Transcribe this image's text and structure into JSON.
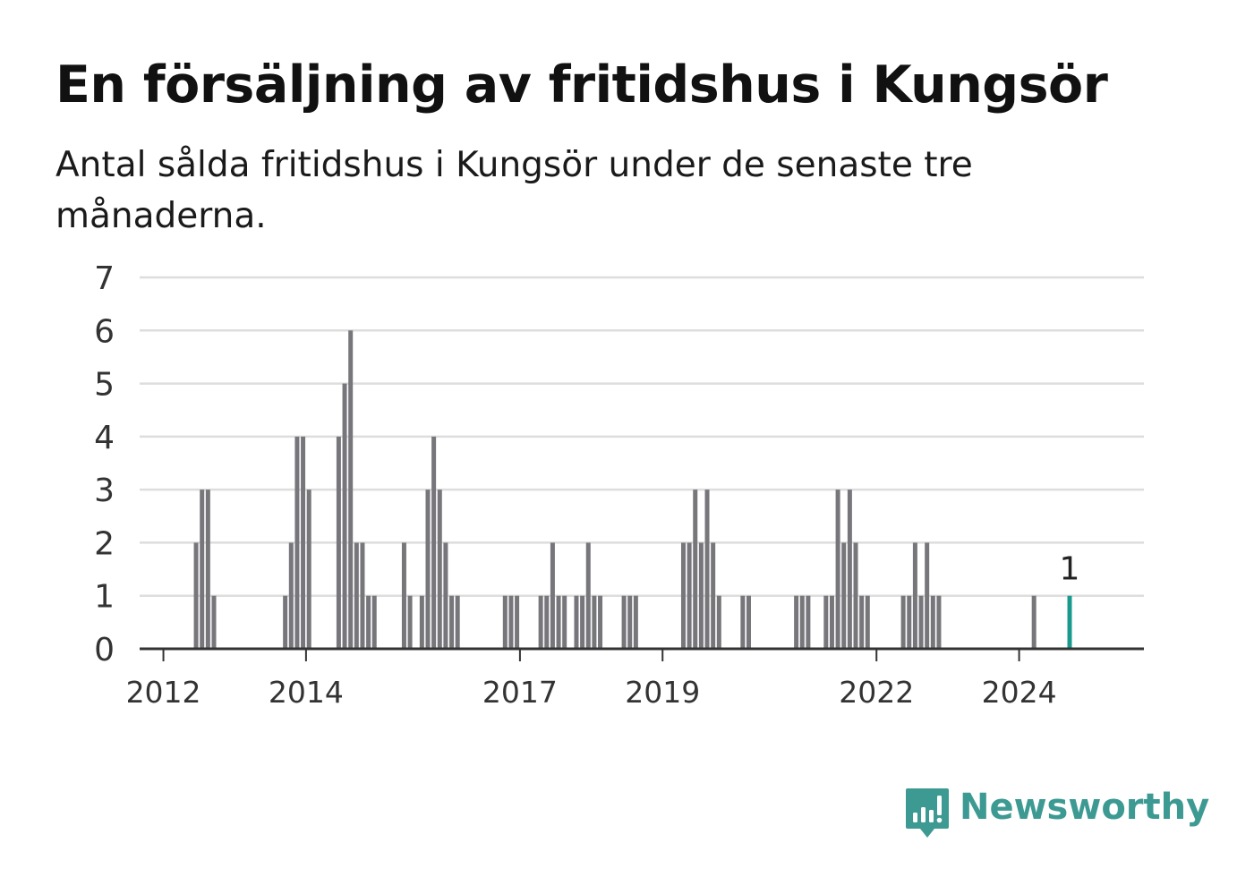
{
  "header": {
    "title": "En försäljning av fritidshus i Kungsör",
    "subtitle": "Antal sålda fritidshus i Kungsör under de senaste tre månaderna."
  },
  "brand": {
    "name": "Newsworthy",
    "color": "#3d9a93",
    "icon": "newsworthy-logo-icon"
  },
  "colors": {
    "bar": "#77767b",
    "highlight": "#1a9a8c",
    "grid": "#dddddd",
    "axis": "#333333",
    "text": "#333333"
  },
  "chart_data": {
    "type": "bar",
    "title": "En försäljning av fritidshus i Kungsör",
    "subtitle": "Antal sålda fritidshus i Kungsör under de senaste tre månaderna.",
    "xlabel": "",
    "ylabel": "",
    "ylim": [
      0,
      7
    ],
    "yticks": [
      0,
      1,
      2,
      3,
      4,
      5,
      6,
      7
    ],
    "xticks": [
      "2012",
      "2014",
      "2017",
      "2019",
      "2022",
      "2024"
    ],
    "xlim": [
      "2011-09",
      "2025-10"
    ],
    "grid": true,
    "legend": "none",
    "series": [
      {
        "x": [
          "2012-06",
          "2012-07",
          "2012-08",
          "2012-09",
          "2013-09",
          "2013-10",
          "2013-11",
          "2013-12",
          "2014-01",
          "2014-06",
          "2014-07",
          "2014-08",
          "2014-09",
          "2014-10",
          "2014-11",
          "2014-12",
          "2015-05",
          "2015-06",
          "2015-08",
          "2015-09",
          "2015-10",
          "2015-11",
          "2015-12",
          "2016-01",
          "2016-02",
          "2016-10",
          "2016-11",
          "2016-12",
          "2017-04",
          "2017-05",
          "2017-06",
          "2017-07",
          "2017-08",
          "2017-10",
          "2017-11",
          "2017-12",
          "2018-01",
          "2018-02",
          "2018-06",
          "2018-07",
          "2018-08",
          "2019-04",
          "2019-05",
          "2019-06",
          "2019-07",
          "2019-08",
          "2019-09",
          "2019-10",
          "2020-02",
          "2020-03",
          "2020-11",
          "2020-12",
          "2021-01",
          "2021-04",
          "2021-05",
          "2021-06",
          "2021-07",
          "2021-08",
          "2021-09",
          "2021-10",
          "2021-11",
          "2022-05",
          "2022-06",
          "2022-07",
          "2022-08",
          "2022-09",
          "2022-10",
          "2022-11",
          "2024-03",
          "2024-09"
        ],
        "values": [
          2,
          3,
          3,
          1,
          1,
          2,
          4,
          4,
          3,
          4,
          5,
          6,
          2,
          2,
          1,
          1,
          2,
          1,
          1,
          3,
          4,
          3,
          2,
          1,
          1,
          1,
          1,
          1,
          1,
          1,
          2,
          1,
          1,
          1,
          1,
          2,
          1,
          1,
          1,
          1,
          1,
          2,
          2,
          3,
          2,
          3,
          2,
          1,
          1,
          1,
          1,
          1,
          1,
          1,
          1,
          3,
          2,
          3,
          2,
          1,
          1,
          1,
          1,
          2,
          1,
          2,
          1,
          1,
          1,
          1
        ]
      }
    ],
    "highlight": {
      "x": "2024-09",
      "value": 1,
      "label": "1"
    }
  }
}
